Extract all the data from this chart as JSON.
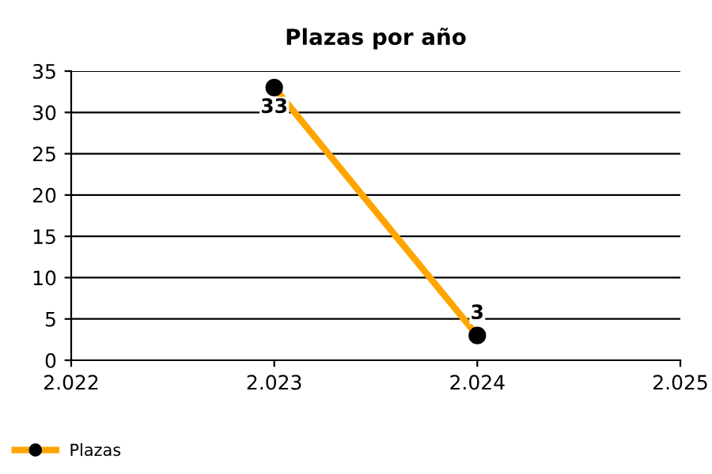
{
  "chart_data": {
    "type": "line",
    "title": "Plazas por año",
    "x": [
      2023,
      2024
    ],
    "series": [
      {
        "name": "Plazas",
        "color": "#ffa500",
        "values": [
          33,
          3
        ]
      }
    ],
    "xlim": [
      2022,
      2025
    ],
    "xticks": [
      {
        "value": 2022,
        "label": "2.022"
      },
      {
        "value": 2023,
        "label": "2.023"
      },
      {
        "value": 2024,
        "label": "2.024"
      },
      {
        "value": 2025,
        "label": "2.025"
      }
    ],
    "ylim": [
      0,
      35
    ],
    "yticks": [
      0,
      5,
      10,
      15,
      20,
      25,
      30,
      35
    ],
    "grid": "y",
    "legend": "bottom left",
    "marker": "circle",
    "line_style": "solid",
    "data_labels": true
  }
}
